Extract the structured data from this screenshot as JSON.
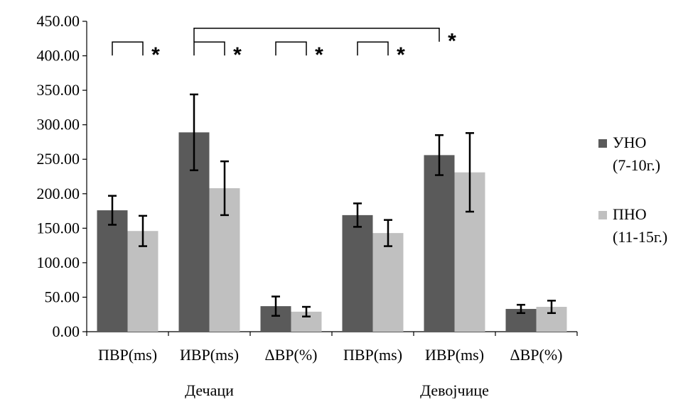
{
  "chart_data": {
    "type": "bar",
    "title": "",
    "xlabel": "",
    "ylabel": "",
    "ylim": [
      0,
      450
    ],
    "yticks": [
      "0.00",
      "50.00",
      "100.00",
      "150.00",
      "200.00",
      "250.00",
      "300.00",
      "350.00",
      "400.00",
      "450.00"
    ],
    "categories": [
      "ПВР(ms)",
      "ИВР(ms)",
      "ΔВР(%)",
      "ПВР(ms)",
      "ИВР(ms)",
      "ΔВР(%)"
    ],
    "groups": [
      {
        "label": "Дечаци",
        "categories": [
          0,
          1,
          2
        ]
      },
      {
        "label": "Девојчице",
        "categories": [
          3,
          4,
          5
        ]
      }
    ],
    "series": [
      {
        "name_line1": "УНО",
        "name_line2": "(7-10г.)",
        "color": "#5a5a5a",
        "values": [
          176,
          289,
          37,
          169,
          256,
          33
        ],
        "errors": [
          21,
          55,
          14,
          17,
          29,
          6
        ]
      },
      {
        "name_line1": "ПНО",
        "name_line2": "(11-15г.)",
        "color": "#c0c0c0",
        "values": [
          146,
          208,
          29,
          143,
          231,
          36
        ],
        "errors": [
          22,
          39,
          7,
          19,
          57,
          9
        ]
      }
    ],
    "significance": [
      {
        "from_category": 0,
        "to_category": 0,
        "from_series": 0,
        "to_series": 1,
        "y": 420,
        "label": "*"
      },
      {
        "from_category": 1,
        "to_category": 1,
        "from_series": 0,
        "to_series": 1,
        "y": 420,
        "label": "*"
      },
      {
        "from_category": 2,
        "to_category": 2,
        "from_series": 0,
        "to_series": 1,
        "y": 420,
        "label": "*"
      },
      {
        "from_category": 3,
        "to_category": 3,
        "from_series": 0,
        "to_series": 1,
        "y": 420,
        "label": "*"
      },
      {
        "from_category": 1,
        "to_category": 4,
        "from_series": 0,
        "to_series": 0,
        "y": 440,
        "label": "*"
      }
    ],
    "grid": false,
    "legend_position": "right"
  }
}
